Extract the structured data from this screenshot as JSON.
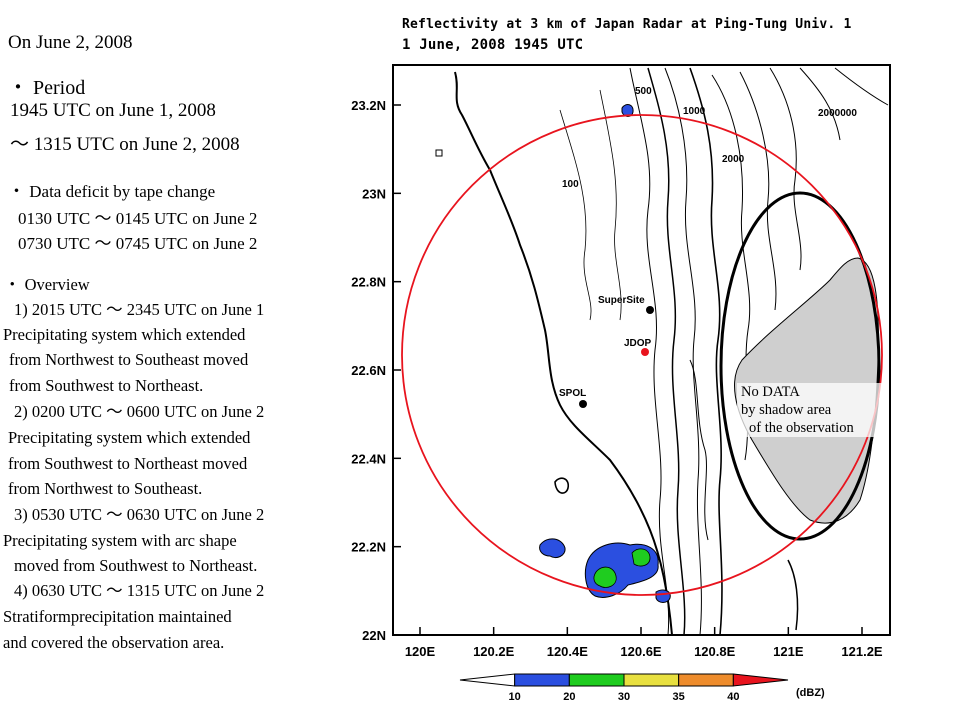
{
  "date_heading": "On June 2, 2008",
  "period": {
    "label": "・ Period",
    "start": "1945 UTC  on June 1, 2008",
    "end": "～ 1315 UTC on June 2, 2008"
  },
  "data_deficit": {
    "label": "・ Data deficit by tape change",
    "items": [
      "0130 UTC ～ 0145 UTC on June 2",
      "0730 UTC ～ 0745 UTC on June 2"
    ]
  },
  "overview": {
    "label": "・ Overview",
    "lines": [
      "1) 2015 UTC ～ 2345 UTC on June 1",
      "Precipitating system which extended",
      "from Northwest to Southeast moved",
      "from Southwest to Northeast.",
      "2) 0200 UTC ～ 0600 UTC on June 2",
      "Precipitating system which extended",
      "from Southwest to Northeast moved",
      "from Northwest to Southeast.",
      "3) 0530 UTC ～ 0630 UTC on June 2",
      "Precipitating system with arc shape",
      "moved from Southwest to Northeast.",
      "4) 0630 UTC ～ 1315 UTC on June 2",
      "Stratiformprecipitation maintained",
      "and covered the observation area."
    ]
  },
  "map": {
    "title_line1": "Reflectivity at 3 km of Japan Radar at Ping-Tung Univ. 1",
    "title_line2": "1 June, 2008 1945 UTC",
    "lat_labels": [
      "23.2N",
      "23N",
      "22.8N",
      "22.6N",
      "22.4N",
      "22.2N",
      "22N"
    ],
    "lon_labels": [
      "120E",
      "120.2E",
      "120.4E",
      "120.6E",
      "120.8E",
      "121E",
      "121.2E"
    ],
    "lat_values": [
      23.2,
      23.0,
      22.8,
      22.6,
      22.4,
      22.2,
      22.0
    ],
    "lon_values": [
      120.0,
      120.2,
      120.4,
      120.6,
      120.8,
      121.0,
      121.2
    ],
    "stations": [
      {
        "name": "SuperSite",
        "color": "#000000"
      },
      {
        "name": "JDOP",
        "color": "#e8141e"
      },
      {
        "name": "SPOL",
        "color": "#000000"
      }
    ],
    "contour_labels": [
      "500",
      "1000",
      "2000",
      "100",
      "2000000"
    ],
    "range_ring_color": "#e8141e",
    "shadow_note": [
      "No DATA",
      "by shadow area",
      "of the observation"
    ]
  },
  "colorbar": {
    "ticks": [
      "10",
      "20",
      "30",
      "35",
      "40"
    ],
    "unit": "(dBZ)",
    "colors": [
      "#ffffff",
      "#2b4fe0",
      "#1fcc1f",
      "#e8e040",
      "#ee8c2c",
      "#e8141e"
    ]
  }
}
